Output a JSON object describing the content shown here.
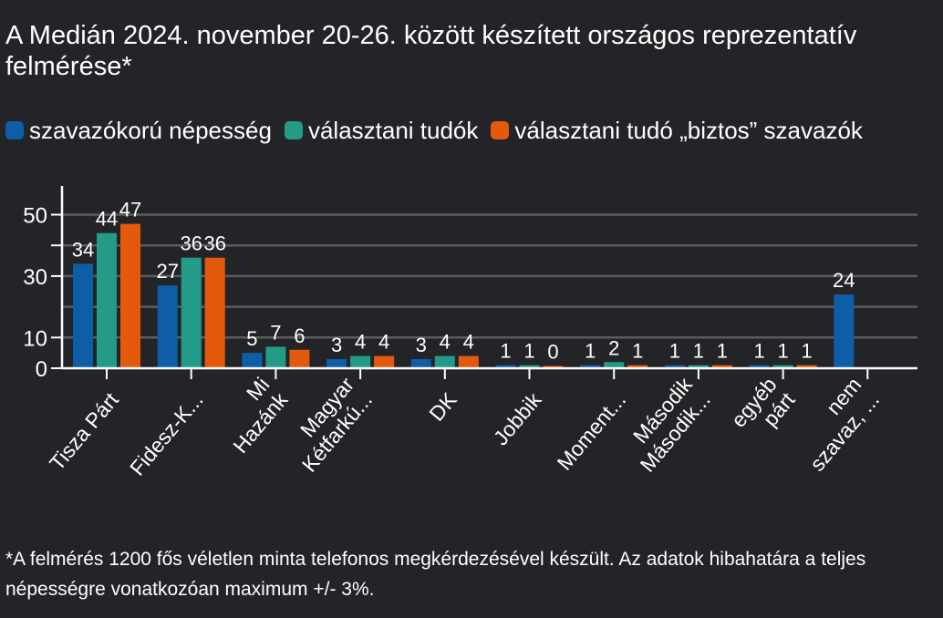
{
  "title": "A Medián 2024. november 20-26. között készített országos reprezentatív felmérése*",
  "footnote": "*A felmérés 1200 fős véletlen minta telefonos megkérdezésével készült. Az adatok hibahatára a teljes népességre vonatkozóan maximum +/- 3%.",
  "colors": {
    "background": "#232427",
    "series": [
      "#0d5ea6",
      "#239b88",
      "#e45a0c"
    ],
    "grid": "#5a5c60",
    "axis": "#ffffff"
  },
  "chart_data": {
    "type": "bar",
    "categories": [
      [
        "Tisza Párt"
      ],
      [
        "Fidesz-K..."
      ],
      [
        "Mi",
        "Hazánk"
      ],
      [
        "Magyar",
        "Kétfarkú..."
      ],
      [
        "DK"
      ],
      [
        "Jobbik"
      ],
      [
        "Moment..."
      ],
      [
        "Második",
        "Második..."
      ],
      [
        "egyéb",
        "párt"
      ],
      [
        "nem",
        "szavaz, ..."
      ]
    ],
    "series": [
      {
        "name": "szavazókorú népesség",
        "values": [
          34,
          27,
          5,
          3,
          3,
          1,
          1,
          1,
          1,
          24
        ]
      },
      {
        "name": "választani tudók",
        "values": [
          44,
          36,
          7,
          4,
          4,
          1,
          2,
          1,
          1,
          null
        ]
      },
      {
        "name": "választani tudó „biztos” szavazók",
        "values": [
          47,
          36,
          6,
          4,
          4,
          0,
          1,
          1,
          1,
          null
        ]
      }
    ],
    "ylim": [
      0,
      50
    ],
    "yticks": [
      0,
      10,
      30,
      50
    ],
    "grid": true,
    "legend_position": "top"
  }
}
